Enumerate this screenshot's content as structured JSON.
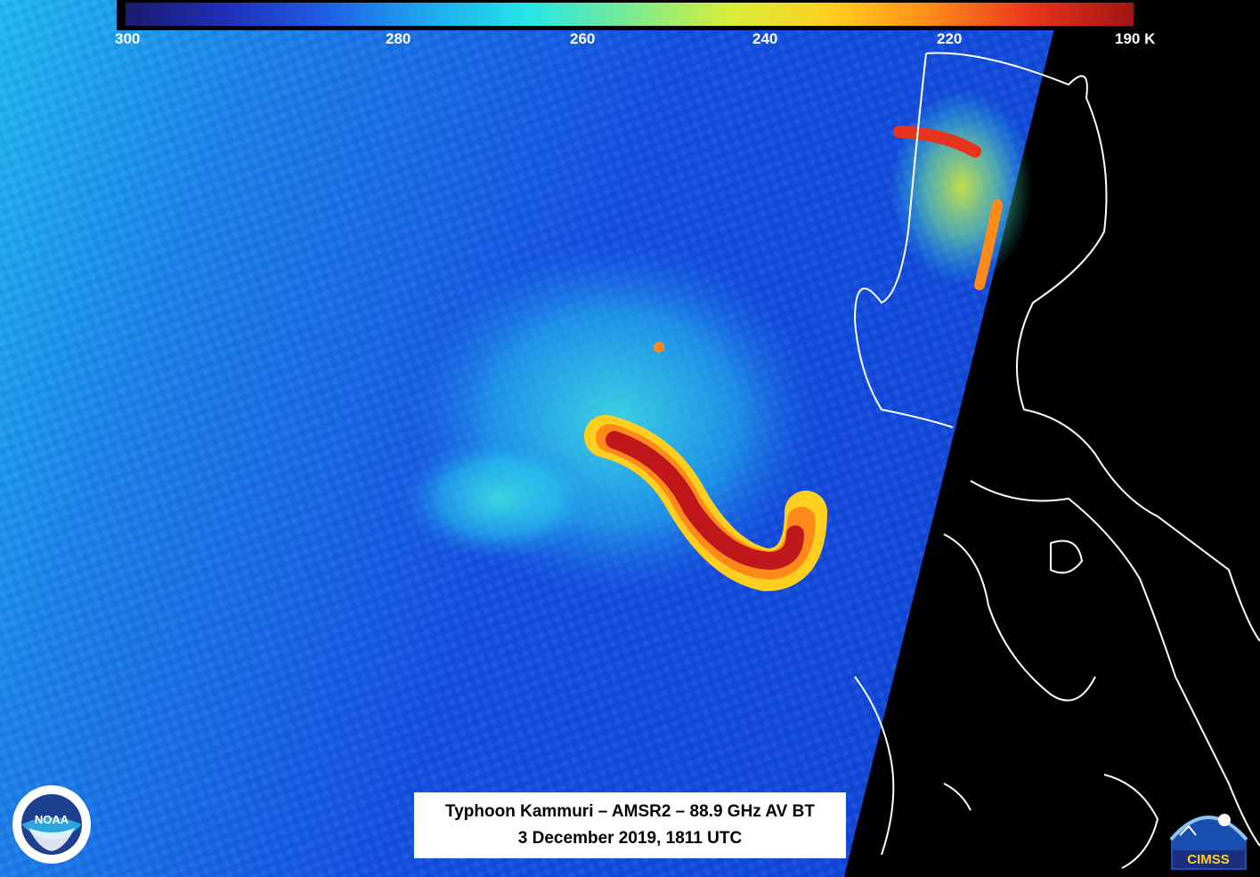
{
  "colorbar": {
    "ticks": [
      "300",
      "280",
      "260",
      "240",
      "220",
      "190 K"
    ],
    "colors": [
      "#1a1a6e",
      "#1f2fb8",
      "#1f5fe6",
      "#1fa8f0",
      "#25e6e6",
      "#7bea92",
      "#d8ee3a",
      "#ffcf1f",
      "#ff8a1a",
      "#e8341c",
      "#a01515"
    ]
  },
  "caption": {
    "line1": "Typhoon Kammuri – AMSR2 – 88.9 GHz AV BT",
    "line2": "3 December 2019, 1811 UTC"
  },
  "logos": {
    "noaa_text": "NOAA",
    "cimss_text": "CIMSS"
  }
}
